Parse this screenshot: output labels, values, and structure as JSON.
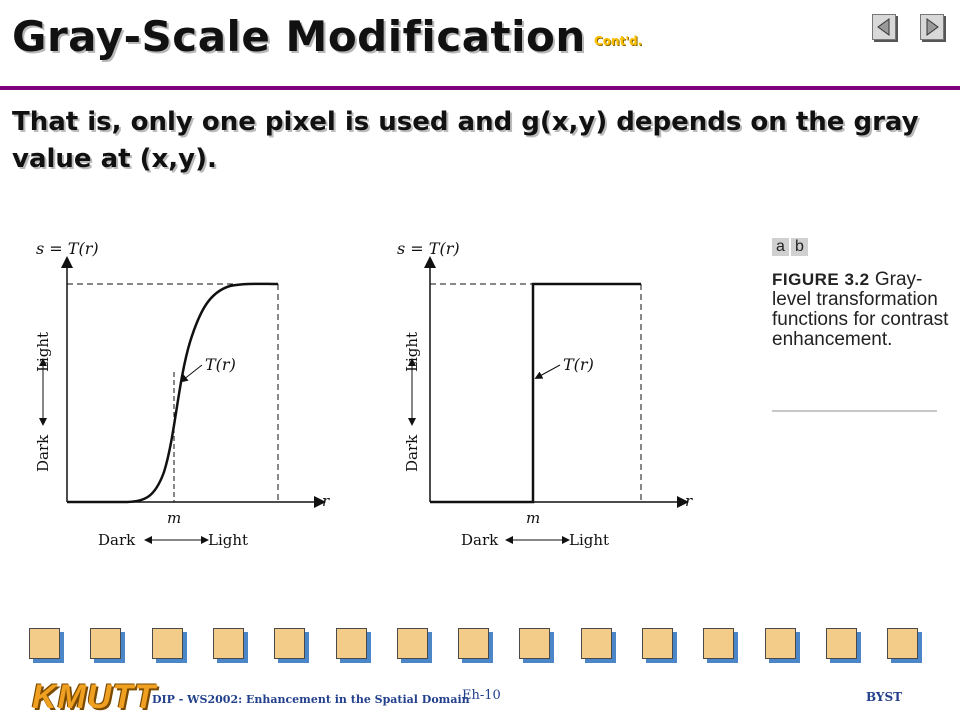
{
  "slide": {
    "title": "Gray-Scale Modification",
    "title_suffix": "Cont'd.",
    "subtitle": "That is, only one pixel is used and g(x,y) depends on the gray value at (x,y).",
    "accent_color": "#800080"
  },
  "nav": {
    "prev_icon": "left-arrow-icon",
    "next_icon": "right-arrow-icon"
  },
  "figure": {
    "plot_a": {
      "y_axis_title": "s = T(r)",
      "x_axis_var": "r",
      "curve_label": "T(r)",
      "threshold_label": "m",
      "y_dark": "Dark",
      "y_light": "Light",
      "x_dark": "Dark",
      "x_light": "Light"
    },
    "plot_b": {
      "y_axis_title": "s = T(r)",
      "x_axis_var": "r",
      "curve_label": "T(r)",
      "threshold_label": "m",
      "y_dark": "Dark",
      "y_light": "Light",
      "x_dark": "Dark",
      "x_light": "Light"
    },
    "panel_a": "a",
    "panel_b": "b",
    "caption_label": "FIGURE 3.2",
    "caption_text": "Gray-level transformation functions for contrast enhancement."
  },
  "footer": {
    "logo": "KMUTT",
    "course": "DIP - WS2002: Enhancement in the Spatial Domain",
    "page": "Eh-10",
    "author": "BYST"
  }
}
